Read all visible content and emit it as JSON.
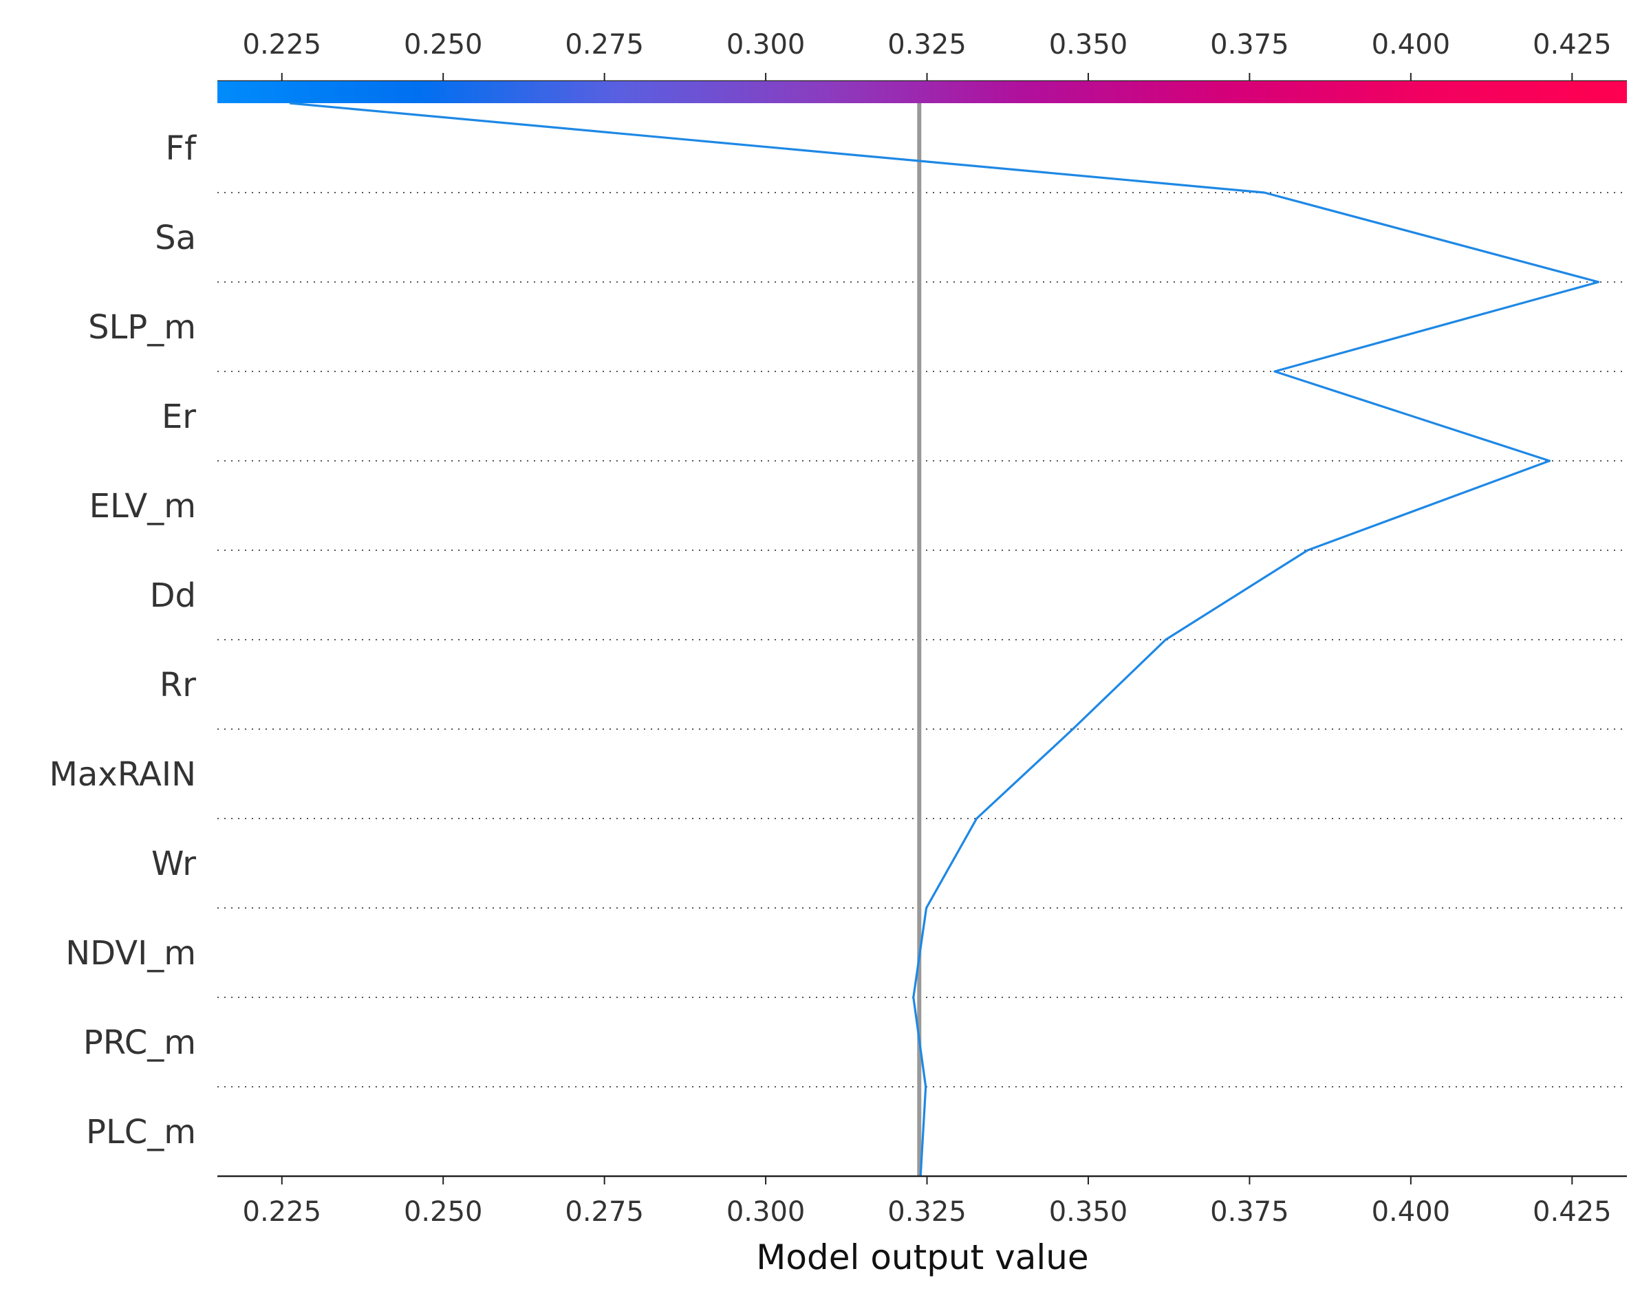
{
  "chart_data": {
    "type": "line",
    "subtype": "shap-decision-plot",
    "xlabel": "Model output value",
    "xlim": [
      0.215,
      0.4335
    ],
    "xticks": [
      "0.225",
      "0.250",
      "0.275",
      "0.300",
      "0.325",
      "0.350",
      "0.375",
      "0.400",
      "0.425"
    ],
    "features": [
      "Ff",
      "Sa",
      "SLP_m",
      "Er",
      "ELV_m",
      "Dd",
      "Rr",
      "MaxRAIN",
      "Wr",
      "NDVI_m",
      "PRC_m",
      "PLC_m"
    ],
    "base_value": 0.3238,
    "path": [
      {
        "level": "top",
        "value": 0.2262
      },
      {
        "level": "Ff",
        "value": 0.3773
      },
      {
        "level": "Sa",
        "value": 0.4291
      },
      {
        "level": "SLP_m",
        "value": 0.3789
      },
      {
        "level": "Er",
        "value": 0.4215
      },
      {
        "level": "ELV_m",
        "value": 0.384
      },
      {
        "level": "Dd",
        "value": 0.362
      },
      {
        "level": "Rr",
        "value": 0.3476
      },
      {
        "level": "MaxRAIN",
        "value": 0.3327
      },
      {
        "level": "Wr",
        "value": 0.3249
      },
      {
        "level": "NDVI_m",
        "value": 0.3229
      },
      {
        "level": "PRC_m",
        "value": 0.3248
      },
      {
        "level": "PLC_m",
        "value": 0.324
      }
    ],
    "line_color": "#1e88e5",
    "base_line_color": "#999999",
    "colorbar": {
      "stops": [
        "#008bfb",
        "#0070f0",
        "#5a5fe0",
        "#8a3dc0",
        "#b0109c",
        "#d4007a",
        "#f20060",
        "#ff0051"
      ],
      "range": [
        0.215,
        0.4335
      ]
    },
    "grid": "dotted-horizontal",
    "legend": "none"
  }
}
